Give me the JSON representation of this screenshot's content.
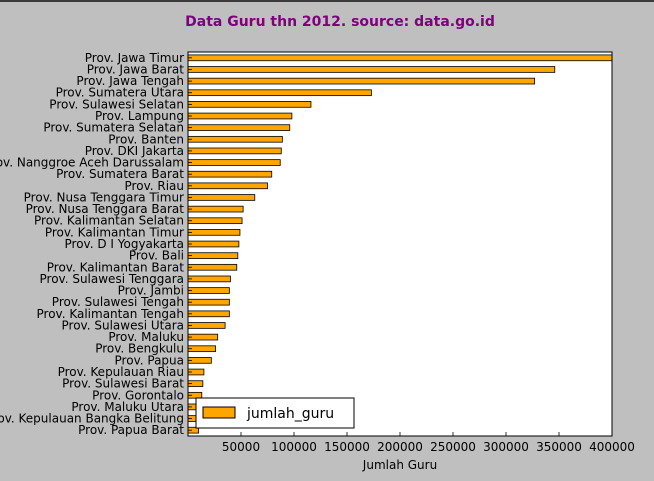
{
  "chart_data": {
    "type": "bar",
    "orientation": "horizontal",
    "title": "Data Guru thn 2012. source: data.go.id",
    "xlabel": "Jumlah Guru",
    "ylabel": "",
    "xlim": [
      0,
      400000
    ],
    "xticks": [
      "50000",
      "100000",
      "150000",
      "200000",
      "250000",
      "300000",
      "350000",
      "400000"
    ],
    "bar_color": "#ffa500",
    "title_color": "#800080",
    "legend": {
      "placement": "lower-left",
      "label": "jumlah_guru"
    },
    "series": [
      {
        "name": "jumlah_guru",
        "categories": [
          "Prov. Jawa Timur",
          "Prov. Jawa Barat",
          "Prov. Jawa Tengah",
          "Prov. Sumatera Utara",
          "Prov. Sulawesi Selatan",
          "Prov. Lampung",
          "Prov. Sumatera Selatan",
          "Prov. Banten",
          "Prov. DKI Jakarta",
          "Prov. Nanggroe Aceh Darussalam",
          "Prov. Sumatera Barat",
          "Prov. Riau",
          "Prov. Nusa Tenggara Timur",
          "Prov. Nusa Tenggara Barat",
          "Prov. Kalimantan Selatan",
          "Prov. Kalimantan Timur",
          "Prov. D I Yogyakarta",
          "Prov. Bali",
          "Prov. Kalimantan Barat",
          "Prov. Sulawesi Tenggara",
          "Prov. Jambi",
          "Prov. Sulawesi Tengah",
          "Prov. Kalimantan Tengah",
          "Prov. Sulawesi Utara",
          "Prov. Maluku",
          "Prov. Bengkulu",
          "Prov. Papua",
          "Prov. Kepulauan Riau",
          "Prov. Sulawesi Barat",
          "Prov. Gorontalo",
          "Prov. Maluku Utara",
          "Prov. Kepulauan Bangka Belitung",
          "Prov. Papua Barat"
        ],
        "values": [
          402000,
          346000,
          327000,
          173000,
          116000,
          98000,
          96000,
          89000,
          88000,
          87000,
          79000,
          75000,
          63000,
          52000,
          51000,
          49000,
          48000,
          47000,
          46000,
          40000,
          39000,
          39000,
          39000,
          35000,
          28000,
          26000,
          22000,
          15000,
          14000,
          13000,
          12000,
          11000,
          10000
        ]
      }
    ]
  }
}
